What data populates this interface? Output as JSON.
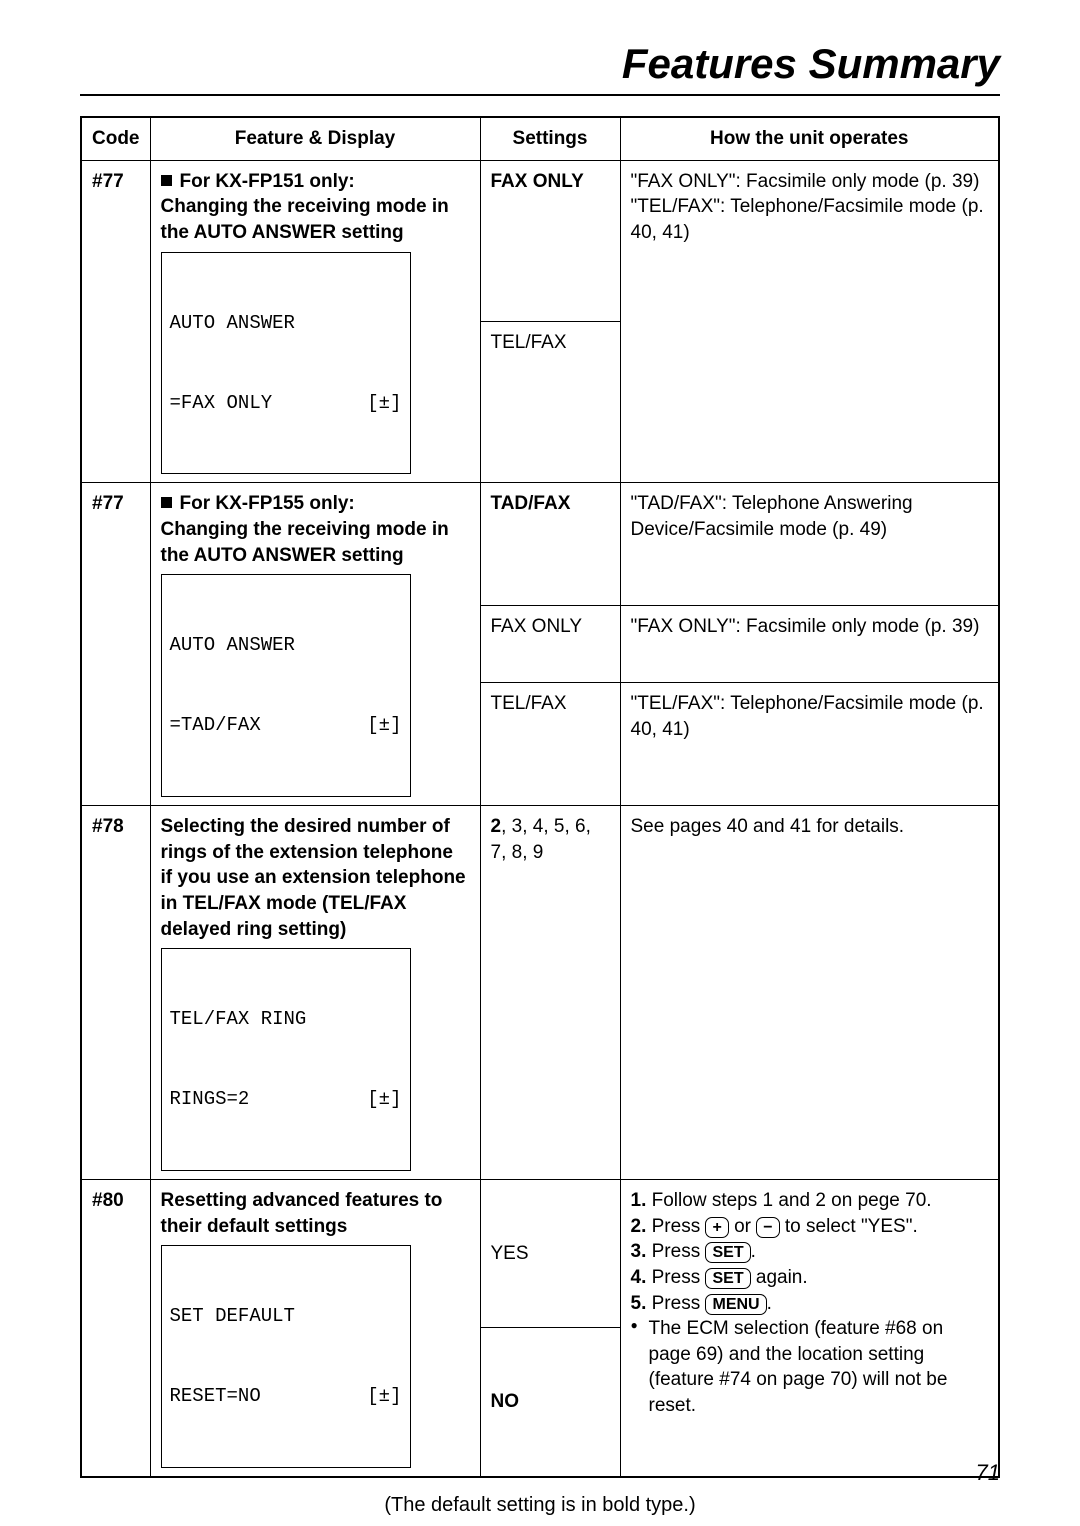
{
  "header_title": "Features Summary",
  "columns": {
    "code": "Code",
    "feature": "Feature & Display",
    "settings": "Settings",
    "operates": "How the unit operates"
  },
  "rows": {
    "r1": {
      "code": "#77",
      "feature_prefix": "For KX-FP151 only:",
      "feature_line": "Changing the receiving mode in the AUTO ANSWER setting",
      "display_line1": "AUTO ANSWER",
      "display_line2": "=FAX ONLY",
      "display_pm": "[±]",
      "setting1": "FAX ONLY",
      "setting2": "TEL/FAX",
      "operates_l1": "\"FAX ONLY\": Facsimile only mode (p. 39)",
      "operates_l2": "\"TEL/FAX\": Telephone/Facsimile mode (p. 40, 41)"
    },
    "r2": {
      "code": "#77",
      "feature_prefix": "For KX-FP155 only:",
      "feature_line": "Changing the receiving mode in the AUTO ANSWER setting",
      "display_line1": "AUTO ANSWER",
      "display_line2": "=TAD/FAX",
      "display_pm": "[±]",
      "setting1": "TAD/FAX",
      "setting2": "FAX ONLY",
      "setting3": "TEL/FAX",
      "operates_l1": "\"TAD/FAX\": Telephone Answering Device/Facsimile mode (p. 49)",
      "operates_l2": "\"FAX ONLY\": Facsimile only mode (p. 39)",
      "operates_l3": "\"TEL/FAX\": Telephone/Facsimile mode (p. 40, 41)"
    },
    "r3": {
      "code": "#78",
      "feature_line": "Selecting the desired number of rings of the extension telephone if you use an extension telephone in TEL/FAX mode (TEL/FAX delayed ring setting)",
      "display_line1": "TEL/FAX RING",
      "display_line2": "RINGS=2",
      "display_pm": "[±]",
      "setting_default": "2",
      "setting_rest": ", 3, 4, 5, 6, 7, 8, 9",
      "operates": "See pages 40 and 41 for details."
    },
    "r4": {
      "code": "#80",
      "feature_line": "Resetting advanced features to their default settings",
      "display_line1": "SET DEFAULT",
      "display_line2": "RESET=NO",
      "display_pm": "[±]",
      "setting1": "YES",
      "setting2": "NO",
      "op_step1_pre": " Follow steps 1 and 2 on pege 70.",
      "op_step2_pre": " Press ",
      "op_step2_mid": " or ",
      "op_step2_post": " to select \"YES\".",
      "op_step3_pre": " Press ",
      "op_step3_post": ".",
      "op_step4_pre": " Press ",
      "op_step4_post": " again.",
      "op_step5_pre": " Press ",
      "op_step5_post": ".",
      "key_plus": "+",
      "key_minus": "−",
      "key_set": "SET",
      "key_menu": "MENU",
      "num1": "1.",
      "num2": "2.",
      "num3": "3.",
      "num4": "4.",
      "num5": "5.",
      "bullet_note": "The ECM selection (feature #68 on page 69) and the location setting (feature #74 on page 70) will not be reset."
    }
  },
  "footnote": "(The default setting is in bold type.)",
  "page_number": "71"
}
